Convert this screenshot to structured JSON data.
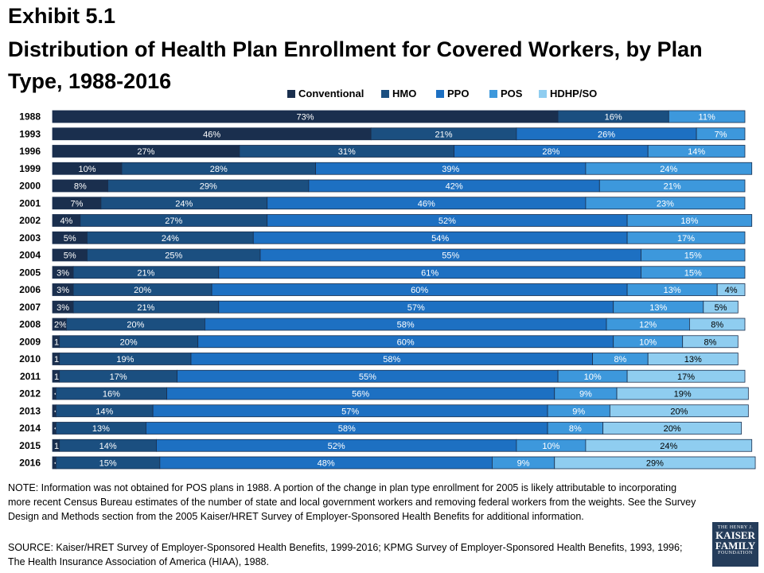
{
  "exhibit": "Exhibit 5.1",
  "title": "Distribution of Health Plan Enrollment for Covered Workers, by Plan Type, 1988-2016",
  "note": "NOTE:  Information was not obtained for POS plans in 1988. A portion of the change in plan type enrollment for 2005 is likely attributable to incorporating more recent Census Bureau estimates of the number of state and local government workers and removing federal workers from the weights. See the Survey Design and Methods section from the 2005 Kaiser/HRET Survey of Employer-Sponsored Health Benefits for additional information.",
  "source": "SOURCE:  Kaiser/HRET Survey of Employer-Sponsored Health Benefits, 1999-2016; KPMG Survey of Employer-Sponsored Health Benefits, 1993, 1996; The Health Insurance Association of America (HIAA), 1988.",
  "logo": {
    "line1": "THE HENRY J.",
    "line2": "KAISER",
    "line3": "FAMILY",
    "line4": "FOUNDATION"
  },
  "chart_data": {
    "type": "bar",
    "orientation": "horizontal",
    "stacked": true,
    "percent": true,
    "xlim": [
      0,
      100
    ],
    "legend_position": "top",
    "categories": [
      "1988",
      "1993",
      "1996",
      "1999",
      "2000",
      "2001",
      "2002",
      "2003",
      "2004",
      "2005",
      "2006",
      "2007",
      "2008",
      "2009",
      "2010",
      "2011",
      "2012",
      "2013",
      "2014",
      "2015",
      "2016"
    ],
    "series": [
      {
        "name": "Conventional",
        "color": "#1a2f4e",
        "values": [
          73,
          46,
          27,
          10,
          8,
          7,
          4,
          5,
          5,
          3,
          3,
          3,
          2,
          1,
          1,
          1,
          0.5,
          0.5,
          0.5,
          1,
          0.5
        ],
        "labels": [
          "73%",
          "46%",
          "27%",
          "10%",
          "8%",
          "7%",
          "4%",
          "5%",
          "5%",
          "3%",
          "3%",
          "3%",
          "2%",
          "1%",
          "1%",
          "1%",
          "< 1%",
          "< 1%",
          "< 1%",
          "1%",
          "< 1%"
        ]
      },
      {
        "name": "HMO",
        "color": "#1b4f80",
        "values": [
          16,
          21,
          31,
          28,
          29,
          24,
          27,
          24,
          25,
          21,
          20,
          21,
          20,
          20,
          19,
          17,
          16,
          14,
          13,
          14,
          15
        ],
        "labels": [
          "16%",
          "21%",
          "31%",
          "28%",
          "29%",
          "24%",
          "27%",
          "24%",
          "25%",
          "21%",
          "20%",
          "21%",
          "20%",
          "20%",
          "19%",
          "17%",
          "16%",
          "14%",
          "13%",
          "14%",
          "15%"
        ]
      },
      {
        "name": "PPO",
        "color": "#1d70c2",
        "values": [
          0,
          26,
          28,
          39,
          42,
          46,
          52,
          54,
          55,
          61,
          60,
          57,
          58,
          60,
          58,
          55,
          56,
          57,
          58,
          52,
          48
        ],
        "labels": [
          "",
          "26%",
          "28%",
          "39%",
          "42%",
          "46%",
          "52%",
          "54%",
          "55%",
          "61%",
          "60%",
          "57%",
          "58%",
          "60%",
          "58%",
          "55%",
          "56%",
          "57%",
          "58%",
          "52%",
          "48%"
        ]
      },
      {
        "name": "POS",
        "color": "#3d98dc",
        "values": [
          11,
          7,
          14,
          24,
          21,
          23,
          18,
          17,
          15,
          15,
          13,
          13,
          12,
          10,
          8,
          10,
          9,
          9,
          8,
          10,
          9
        ],
        "labels": [
          "11%",
          "7%",
          "14%",
          "24%",
          "21%",
          "23%",
          "18%",
          "17%",
          "15%",
          "15%",
          "13%",
          "13%",
          "12%",
          "10%",
          "8%",
          "10%",
          "9%",
          "9%",
          "8%",
          "10%",
          "9%"
        ]
      },
      {
        "name": "HDHP/SO",
        "color": "#8fcdf0",
        "values": [
          0,
          0,
          0,
          0,
          0,
          0,
          0,
          0,
          0,
          0,
          4,
          5,
          8,
          8,
          13,
          17,
          19,
          20,
          20,
          24,
          29
        ],
        "labels": [
          "",
          "",
          "",
          "",
          "",
          "",
          "",
          "",
          "",
          "",
          "4%",
          "5%",
          "8%",
          "8%",
          "13%",
          "17%",
          "19%",
          "20%",
          "20%",
          "24%",
          "29%"
        ]
      }
    ]
  }
}
